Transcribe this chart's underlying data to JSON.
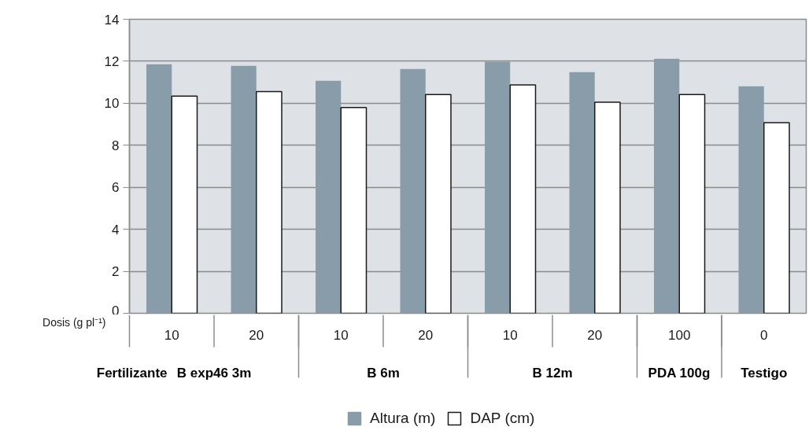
{
  "chart_data": {
    "type": "bar",
    "xlabel": "Dosis (g pl⁻¹)",
    "categories": [
      "10",
      "20",
      "10",
      "20",
      "10",
      "20",
      "100",
      "0"
    ],
    "series": [
      {
        "name": "Altura (m)",
        "color": "#889da9",
        "values": [
          11.86,
          11.78,
          11.07,
          11.63,
          11.98,
          11.48,
          12.12,
          10.81
        ]
      },
      {
        "name": "DAP (cm)",
        "color": "#ffffff",
        "values": [
          10.34,
          10.56,
          9.8,
          10.42,
          10.87,
          10.05,
          10.42,
          9.08
        ]
      }
    ],
    "annotations": [
      "Fertilizante",
      "B exp46 3m",
      "B 6m",
      "B 12m",
      "PDA 100g",
      "Testigo"
    ],
    "ylim": [
      0,
      14
    ],
    "yticks": [
      0,
      2,
      4,
      6,
      8,
      10,
      12,
      14
    ],
    "grid": "y",
    "legend": "bottom"
  }
}
